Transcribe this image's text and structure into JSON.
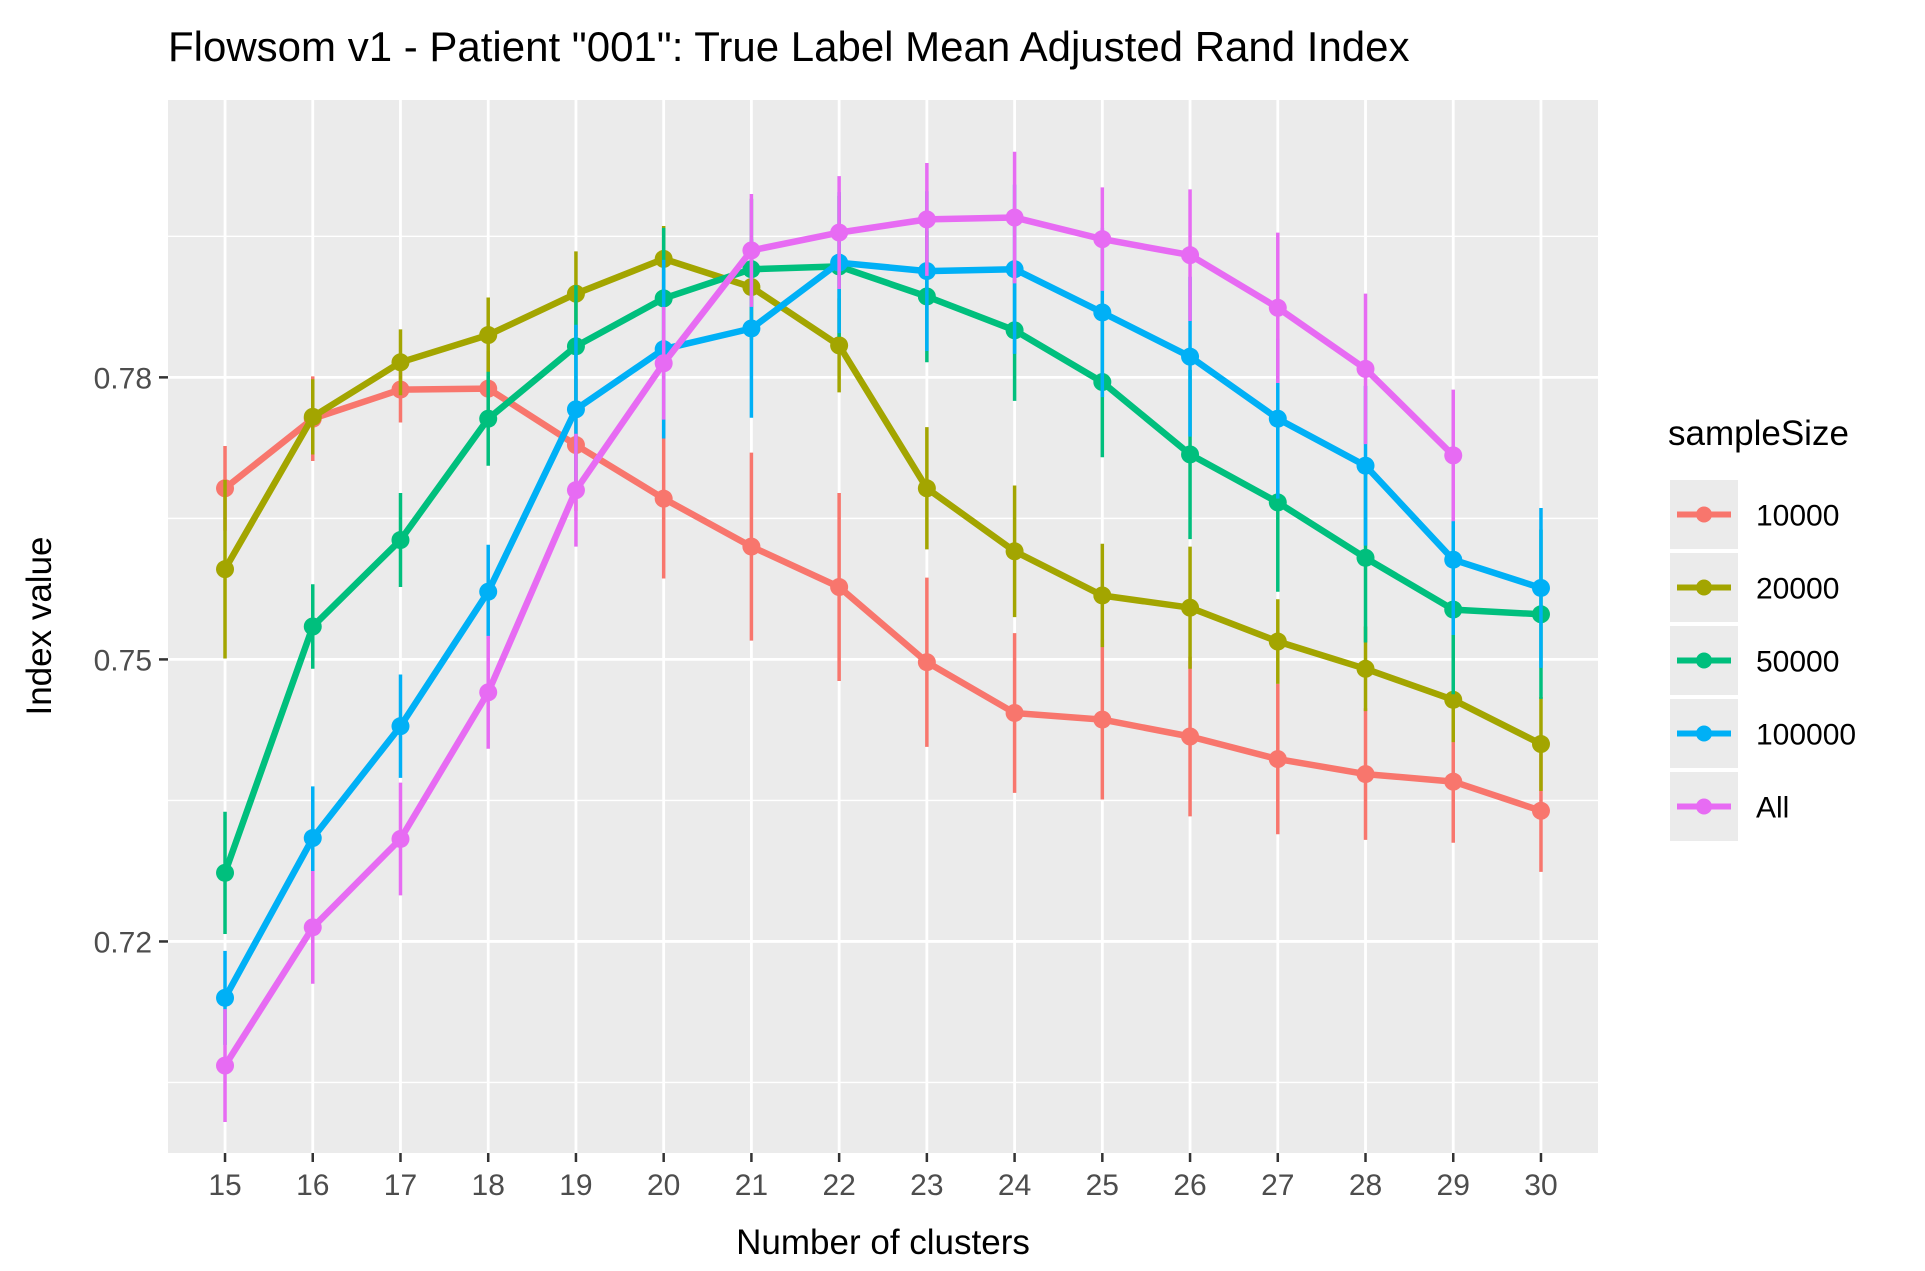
{
  "chart_data": {
    "type": "line",
    "title": "Flowsom v1 - Patient \"001\": True Label Mean Adjusted Rand Index",
    "xlabel": "Number of clusters",
    "ylabel": "Index value",
    "x": [
      15,
      16,
      17,
      18,
      19,
      20,
      21,
      22,
      23,
      24,
      25,
      26,
      27,
      28,
      29,
      30
    ],
    "xlim": [
      14.35,
      30.65
    ],
    "ylim": [
      0.6975,
      0.8095
    ],
    "yticks": [
      0.72,
      0.75,
      0.78
    ],
    "ytick_labels": [
      "0.72",
      "0.75",
      "0.78"
    ],
    "grid": true,
    "legend_title": "sampleSize",
    "legend_position": "right",
    "series": [
      {
        "name": "10000",
        "color": "#F8766D",
        "values": [
          0.7682,
          0.7756,
          0.7787,
          0.7788,
          0.7728,
          0.7671,
          0.762,
          0.7577,
          0.7497,
          0.7443,
          0.7436,
          0.7418,
          0.7394,
          0.7378,
          0.737,
          0.7339
        ],
        "err": [
          0.0045,
          0.0045,
          0.0035,
          0.004,
          0.007,
          0.0085,
          0.01,
          0.01,
          0.009,
          0.0085,
          0.0085,
          0.0085,
          0.008,
          0.007,
          0.0065,
          0.0065
        ]
      },
      {
        "name": "20000",
        "color": "#A3A500",
        "values": [
          0.7596,
          0.7758,
          0.7816,
          0.7845,
          0.7889,
          0.7926,
          0.7896,
          0.7834,
          0.7682,
          0.7615,
          0.7568,
          0.7555,
          0.7519,
          0.749,
          0.7457,
          0.741
        ],
        "err": [
          0.0095,
          0.004,
          0.0035,
          0.004,
          0.0045,
          0.0035,
          0.0045,
          0.005,
          0.0065,
          0.007,
          0.0055,
          0.0065,
          0.0045,
          0.0045,
          0.0045,
          0.005
        ]
      },
      {
        "name": "50000",
        "color": "#00BF7D",
        "values": [
          0.7273,
          0.7535,
          0.7627,
          0.7756,
          0.7833,
          0.7884,
          0.7915,
          0.7918,
          0.7886,
          0.785,
          0.7795,
          0.7718,
          0.7667,
          0.7608,
          0.7553,
          0.7548
        ],
        "err": [
          0.0065,
          0.0045,
          0.005,
          0.005,
          0.0065,
          0.0075,
          0.0075,
          0.0075,
          0.007,
          0.0075,
          0.008,
          0.009,
          0.0095,
          0.009,
          0.009,
          0.009
        ]
      },
      {
        "name": "100000",
        "color": "#00B0F6",
        "values": [
          0.714,
          0.731,
          0.7429,
          0.7572,
          0.7766,
          0.783,
          0.7852,
          0.7922,
          0.7913,
          0.7915,
          0.7869,
          0.7822,
          0.7756,
          0.7706,
          0.7606,
          0.7576
        ],
        "err": [
          0.005,
          0.0055,
          0.0055,
          0.005,
          0.009,
          0.0095,
          0.0095,
          0.0075,
          0.0085,
          0.009,
          0.009,
          0.0085,
          0.0085,
          0.0085,
          0.008,
          0.0085
        ]
      },
      {
        "name": "All",
        "color": "#E76BF3",
        "values": [
          0.7068,
          0.7215,
          0.7309,
          0.7465,
          0.768,
          0.7815,
          0.7935,
          0.7954,
          0.7968,
          0.797,
          0.7947,
          0.793,
          0.7874,
          0.7809,
          0.7717,
          null
        ],
        "err": [
          0.006,
          0.006,
          0.006,
          0.006,
          0.006,
          0.006,
          0.006,
          0.006,
          0.006,
          0.007,
          0.0055,
          0.007,
          0.008,
          0.008,
          0.007,
          null
        ]
      }
    ]
  }
}
